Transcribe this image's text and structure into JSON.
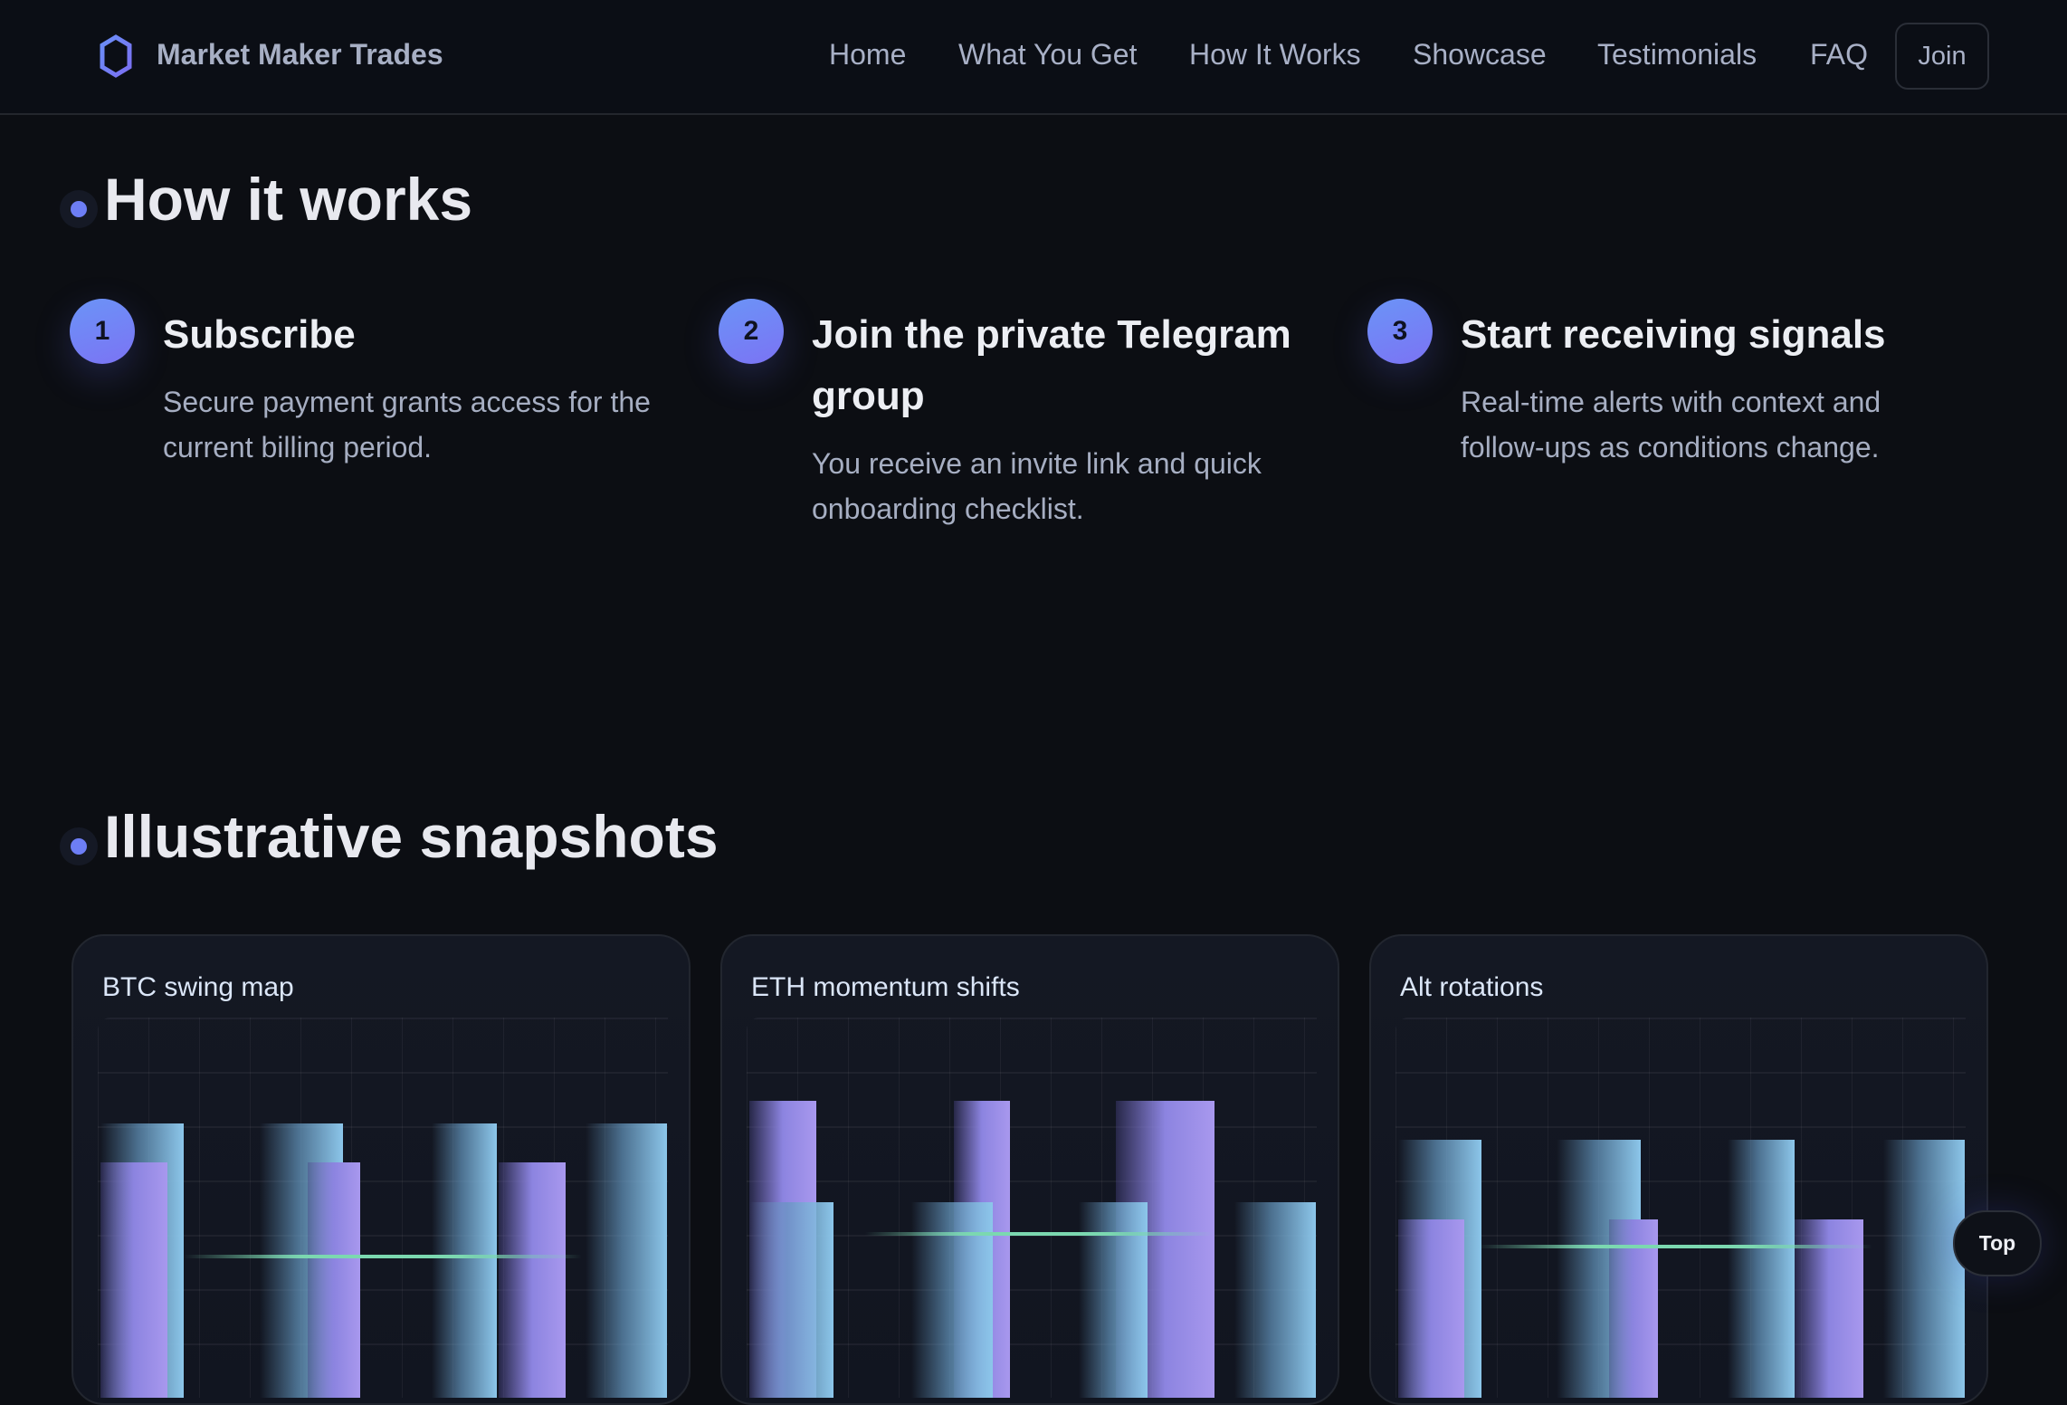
{
  "header": {
    "brand": "Market Maker Trades",
    "logo_icon": "hexagon-icon",
    "nav": [
      "Home",
      "What You Get",
      "How It Works",
      "Showcase",
      "Testimonials",
      "FAQ"
    ],
    "join_label": "Join"
  },
  "how_it_works": {
    "title": "How it works",
    "steps": [
      {
        "number": "1",
        "title": "Subscribe",
        "description": "Secure payment grants access for the current billing period."
      },
      {
        "number": "2",
        "title": "Join the private Telegram group",
        "description": "You receive an invite link and quick onboarding checklist."
      },
      {
        "number": "3",
        "title": "Start receiving signals",
        "description": "Real-time alerts with context and follow-ups as conditions change."
      }
    ]
  },
  "snapshots": {
    "title": "Illustrative snapshots",
    "cards": [
      {
        "title": "BTC swing map"
      },
      {
        "title": "ETH momentum shifts"
      },
      {
        "title": "Alt rotations"
      }
    ]
  },
  "colors": {
    "accent": "#6d7ef5",
    "bar_blue": "#8cc6ea",
    "bar_purple": "#a898ee",
    "line_green": "#7bd8b0"
  },
  "top_button": "Top"
}
